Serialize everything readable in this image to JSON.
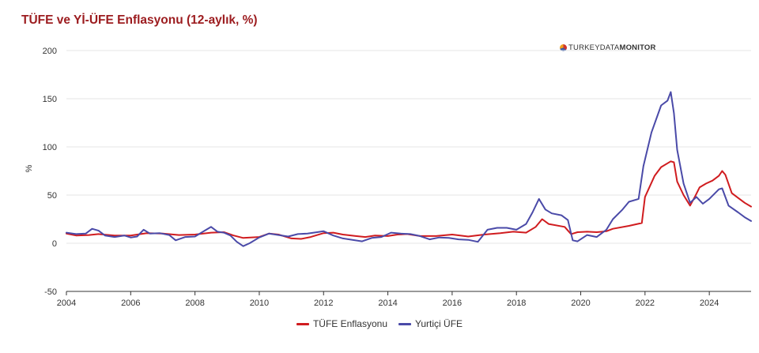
{
  "header": {
    "title": "TÜFE ve Yİ-ÜFE Enflasyonu (12-aylık, %)"
  },
  "brand": {
    "part1": "TURKEYDATA",
    "part2": "MONITOR",
    "icon": "pie-logo-icon"
  },
  "colors": {
    "tufe": "#d01c1f",
    "ufe": "#4a4aa8",
    "grid": "#e6e6e6",
    "axis": "#333333"
  },
  "chart_data": {
    "type": "line",
    "title": "TÜFE ve Yİ-ÜFE Enflasyonu (12-aylık, %)",
    "xlabel": "",
    "ylabel": "%",
    "xlim": [
      2004,
      2025.3
    ],
    "ylim": [
      -50,
      200
    ],
    "y_ticks": [
      -50,
      0,
      50,
      100,
      150,
      200
    ],
    "x_ticks": [
      2004,
      2006,
      2008,
      2010,
      2012,
      2014,
      2016,
      2018,
      2020,
      2022,
      2024
    ],
    "grid": true,
    "legend_position": "bottom",
    "series": [
      {
        "name": "TÜFE Enflasyonu",
        "color": "#d01c1f",
        "points": [
          [
            2004.0,
            10.0
          ],
          [
            2004.3,
            8.0
          ],
          [
            2004.7,
            8.5
          ],
          [
            2005.0,
            9.5
          ],
          [
            2005.5,
            8.0
          ],
          [
            2006.0,
            8.0
          ],
          [
            2006.5,
            10.5
          ],
          [
            2007.0,
            10.0
          ],
          [
            2007.5,
            8.5
          ],
          [
            2008.0,
            9.0
          ],
          [
            2008.5,
            11.0
          ],
          [
            2008.9,
            11.5
          ],
          [
            2009.2,
            8.0
          ],
          [
            2009.5,
            5.5
          ],
          [
            2010.0,
            6.5
          ],
          [
            2010.3,
            10.0
          ],
          [
            2010.6,
            9.0
          ],
          [
            2011.0,
            5.0
          ],
          [
            2011.3,
            4.5
          ],
          [
            2011.6,
            6.5
          ],
          [
            2012.0,
            10.5
          ],
          [
            2012.3,
            11.0
          ],
          [
            2012.6,
            9.0
          ],
          [
            2013.0,
            7.5
          ],
          [
            2013.3,
            6.5
          ],
          [
            2013.6,
            8.0
          ],
          [
            2014.0,
            7.5
          ],
          [
            2014.3,
            9.0
          ],
          [
            2014.6,
            9.5
          ],
          [
            2015.0,
            7.5
          ],
          [
            2015.5,
            7.5
          ],
          [
            2016.0,
            9.0
          ],
          [
            2016.5,
            7.0
          ],
          [
            2017.0,
            9.0
          ],
          [
            2017.5,
            10.5
          ],
          [
            2017.9,
            12.0
          ],
          [
            2018.3,
            11.0
          ],
          [
            2018.6,
            17.0
          ],
          [
            2018.8,
            25.0
          ],
          [
            2019.0,
            20.0
          ],
          [
            2019.5,
            17.0
          ],
          [
            2019.7,
            9.5
          ],
          [
            2019.9,
            11.5
          ],
          [
            2020.2,
            12.0
          ],
          [
            2020.5,
            11.5
          ],
          [
            2020.8,
            12.5
          ],
          [
            2021.0,
            15.0
          ],
          [
            2021.5,
            18.0
          ],
          [
            2021.9,
            21.0
          ],
          [
            2022.0,
            48.0
          ],
          [
            2022.3,
            70.0
          ],
          [
            2022.5,
            79.0
          ],
          [
            2022.8,
            85.0
          ],
          [
            2022.9,
            84.0
          ],
          [
            2023.0,
            64.0
          ],
          [
            2023.2,
            50.0
          ],
          [
            2023.4,
            39.0
          ],
          [
            2023.55,
            48.0
          ],
          [
            2023.7,
            58.0
          ],
          [
            2023.9,
            62.0
          ],
          [
            2024.1,
            65.0
          ],
          [
            2024.3,
            70.0
          ],
          [
            2024.4,
            75.0
          ],
          [
            2024.5,
            71.0
          ],
          [
            2024.7,
            52.0
          ],
          [
            2024.9,
            47.0
          ],
          [
            2025.1,
            42.0
          ],
          [
            2025.3,
            38.0
          ]
        ]
      },
      {
        "name": "Yurtiçi ÜFE",
        "color": "#4a4aa8",
        "points": [
          [
            2004.0,
            11.0
          ],
          [
            2004.3,
            9.5
          ],
          [
            2004.6,
            10.0
          ],
          [
            2004.8,
            15.0
          ],
          [
            2005.0,
            13.0
          ],
          [
            2005.2,
            8.0
          ],
          [
            2005.5,
            6.5
          ],
          [
            2005.8,
            8.0
          ],
          [
            2006.0,
            6.0
          ],
          [
            2006.2,
            7.0
          ],
          [
            2006.4,
            14.0
          ],
          [
            2006.6,
            10.0
          ],
          [
            2006.9,
            10.5
          ],
          [
            2007.2,
            8.5
          ],
          [
            2007.4,
            3.0
          ],
          [
            2007.7,
            6.5
          ],
          [
            2008.0,
            7.0
          ],
          [
            2008.3,
            13.0
          ],
          [
            2008.5,
            17.0
          ],
          [
            2008.7,
            12.0
          ],
          [
            2008.9,
            11.0
          ],
          [
            2009.1,
            8.0
          ],
          [
            2009.3,
            1.5
          ],
          [
            2009.5,
            -3.0
          ],
          [
            2009.7,
            0.0
          ],
          [
            2010.0,
            6.0
          ],
          [
            2010.3,
            10.0
          ],
          [
            2010.6,
            8.5
          ],
          [
            2010.9,
            7.0
          ],
          [
            2011.2,
            9.5
          ],
          [
            2011.5,
            10.0
          ],
          [
            2011.8,
            11.5
          ],
          [
            2012.0,
            12.5
          ],
          [
            2012.3,
            8.0
          ],
          [
            2012.6,
            5.0
          ],
          [
            2012.9,
            3.5
          ],
          [
            2013.2,
            2.0
          ],
          [
            2013.5,
            5.5
          ],
          [
            2013.8,
            6.5
          ],
          [
            2014.1,
            11.0
          ],
          [
            2014.4,
            10.0
          ],
          [
            2014.7,
            9.5
          ],
          [
            2015.0,
            7.5
          ],
          [
            2015.3,
            4.0
          ],
          [
            2015.6,
            6.0
          ],
          [
            2015.9,
            5.5
          ],
          [
            2016.2,
            4.0
          ],
          [
            2016.5,
            3.5
          ],
          [
            2016.8,
            1.5
          ],
          [
            2017.1,
            14.0
          ],
          [
            2017.4,
            16.0
          ],
          [
            2017.7,
            16.0
          ],
          [
            2018.0,
            14.0
          ],
          [
            2018.3,
            20.0
          ],
          [
            2018.5,
            32.0
          ],
          [
            2018.7,
            46.0
          ],
          [
            2018.9,
            35.0
          ],
          [
            2019.1,
            31.0
          ],
          [
            2019.4,
            29.0
          ],
          [
            2019.6,
            24.0
          ],
          [
            2019.75,
            3.0
          ],
          [
            2019.9,
            2.0
          ],
          [
            2020.2,
            8.5
          ],
          [
            2020.5,
            6.5
          ],
          [
            2020.8,
            14.0
          ],
          [
            2021.0,
            25.0
          ],
          [
            2021.3,
            35.0
          ],
          [
            2021.5,
            43.0
          ],
          [
            2021.8,
            46.0
          ],
          [
            2021.95,
            80.0
          ],
          [
            2022.2,
            115.0
          ],
          [
            2022.5,
            143.0
          ],
          [
            2022.7,
            148.0
          ],
          [
            2022.8,
            157.0
          ],
          [
            2022.9,
            135.0
          ],
          [
            2023.0,
            97.0
          ],
          [
            2023.2,
            62.0
          ],
          [
            2023.4,
            42.0
          ],
          [
            2023.6,
            48.0
          ],
          [
            2023.8,
            41.0
          ],
          [
            2024.0,
            46.0
          ],
          [
            2024.3,
            56.0
          ],
          [
            2024.4,
            57.0
          ],
          [
            2024.6,
            39.0
          ],
          [
            2024.9,
            32.0
          ],
          [
            2025.1,
            27.0
          ],
          [
            2025.3,
            23.0
          ]
        ]
      }
    ]
  }
}
